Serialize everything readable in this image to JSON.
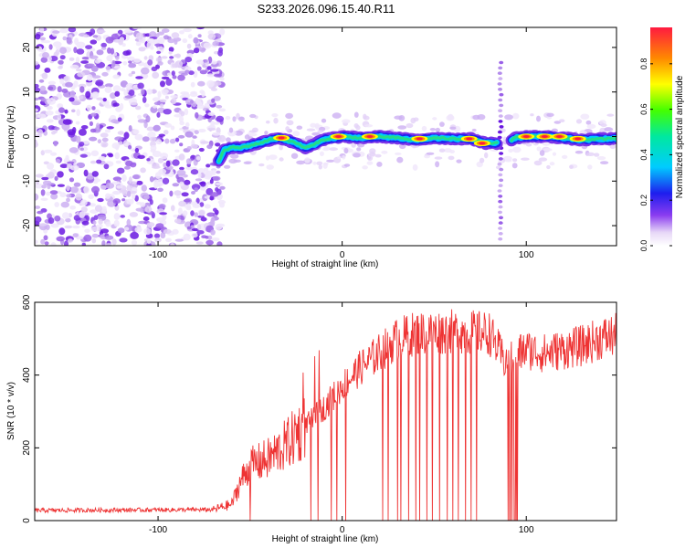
{
  "title": "S233.2026.096.15.40.R11",
  "chart_data": [
    {
      "type": "heatmap",
      "name": "spectrogram",
      "xlabel": "Height of straight line (km)",
      "ylabel": "Frequency (Hz)",
      "xlim": [
        -167,
        149
      ],
      "ylim": [
        -24.5,
        24.5
      ],
      "xticks": [
        -100,
        0,
        100
      ],
      "yticks": [
        -20,
        -10,
        0,
        10,
        20
      ],
      "noise_region_x": [
        -167,
        -67
      ],
      "signal_track": [
        {
          "x": -67,
          "y": -5.5
        },
        {
          "x": -64,
          "y": -3
        },
        {
          "x": -60,
          "y": -2.5
        },
        {
          "x": -55,
          "y": -2.5
        },
        {
          "x": -50,
          "y": -2
        },
        {
          "x": -45,
          "y": -1.5
        },
        {
          "x": -40,
          "y": -0.8
        },
        {
          "x": -35,
          "y": -0.3
        },
        {
          "x": -30,
          "y": -0.8
        },
        {
          "x": -25,
          "y": -1.5
        },
        {
          "x": -20,
          "y": -2.5
        },
        {
          "x": -16,
          "y": -2
        },
        {
          "x": -12,
          "y": -1
        },
        {
          "x": -8,
          "y": -0.5
        },
        {
          "x": 0,
          "y": 0
        },
        {
          "x": 10,
          "y": -0.3
        },
        {
          "x": 20,
          "y": 0
        },
        {
          "x": 30,
          "y": -0.3
        },
        {
          "x": 40,
          "y": -0.8
        },
        {
          "x": 50,
          "y": -0.3
        },
        {
          "x": 60,
          "y": -0.5
        },
        {
          "x": 70,
          "y": -0.5
        },
        {
          "x": 78,
          "y": -1.5
        },
        {
          "x": 84,
          "y": -1.5
        },
        {
          "x": 88,
          "y": -2
        },
        {
          "x": 94,
          "y": -0.3
        },
        {
          "x": 100,
          "y": 0
        },
        {
          "x": 110,
          "y": 0
        },
        {
          "x": 120,
          "y": -0.3
        },
        {
          "x": 130,
          "y": -0.8
        },
        {
          "x": 140,
          "y": -0.5
        },
        {
          "x": 149,
          "y": -0.5
        }
      ],
      "peaks": [
        {
          "x": -33,
          "y": -0.3
        },
        {
          "x": -2,
          "y": 0
        },
        {
          "x": 15,
          "y": 0
        },
        {
          "x": 42,
          "y": -0.5
        },
        {
          "x": 69,
          "y": -0.5
        },
        {
          "x": 76,
          "y": -1.5
        },
        {
          "x": 100,
          "y": 0
        },
        {
          "x": 110,
          "y": 0
        },
        {
          "x": 118,
          "y": 0
        },
        {
          "x": 128,
          "y": -0.5
        }
      ],
      "vertical_streaks": [
        {
          "x": -67,
          "y_range": [
            -8,
            -2
          ]
        },
        {
          "x": 86,
          "y_range": [
            -23,
            17
          ]
        }
      ]
    },
    {
      "type": "colorbar",
      "name": "colorbar",
      "label": "Normalized spectral amplitude",
      "range": [
        0.0,
        0.96
      ],
      "ticks": [
        "0.0",
        "0.2",
        "0.4",
        "0.6",
        "0.8"
      ]
    },
    {
      "type": "line",
      "name": "snr",
      "xlabel": "Height of straight line (km)",
      "ylabel": "SNR (10 * v/v)",
      "xlim": [
        -167,
        149
      ],
      "ylim": [
        0,
        600
      ],
      "xticks": [
        -100,
        0,
        100
      ],
      "yticks": [
        0,
        200,
        400,
        600
      ],
      "color": "#ee3333",
      "profile": [
        {
          "x": -167,
          "y": 28
        },
        {
          "x": -70,
          "y": 30
        },
        {
          "x": -60,
          "y": 45
        },
        {
          "x": -55,
          "y": 110
        },
        {
          "x": -50,
          "y": 150
        },
        {
          "x": -40,
          "y": 170
        },
        {
          "x": -30,
          "y": 210
        },
        {
          "x": -20,
          "y": 260
        },
        {
          "x": -10,
          "y": 310
        },
        {
          "x": 0,
          "y": 370
        },
        {
          "x": 10,
          "y": 420
        },
        {
          "x": 20,
          "y": 460
        },
        {
          "x": 30,
          "y": 500
        },
        {
          "x": 40,
          "y": 515
        },
        {
          "x": 60,
          "y": 520
        },
        {
          "x": 80,
          "y": 515
        },
        {
          "x": 88,
          "y": 440
        },
        {
          "x": 100,
          "y": 470
        },
        {
          "x": 110,
          "y": 460
        },
        {
          "x": 120,
          "y": 470
        },
        {
          "x": 130,
          "y": 480
        },
        {
          "x": 140,
          "y": 500
        },
        {
          "x": 149,
          "y": 510
        }
      ],
      "spikes": [
        -50,
        -17,
        -13,
        -6,
        -3,
        2,
        22,
        25,
        30,
        32,
        36,
        40,
        42,
        46,
        49,
        53,
        57,
        60,
        63,
        67,
        70,
        73
      ],
      "deep_drop_ranges": [
        [
          90,
          96
        ]
      ]
    }
  ]
}
